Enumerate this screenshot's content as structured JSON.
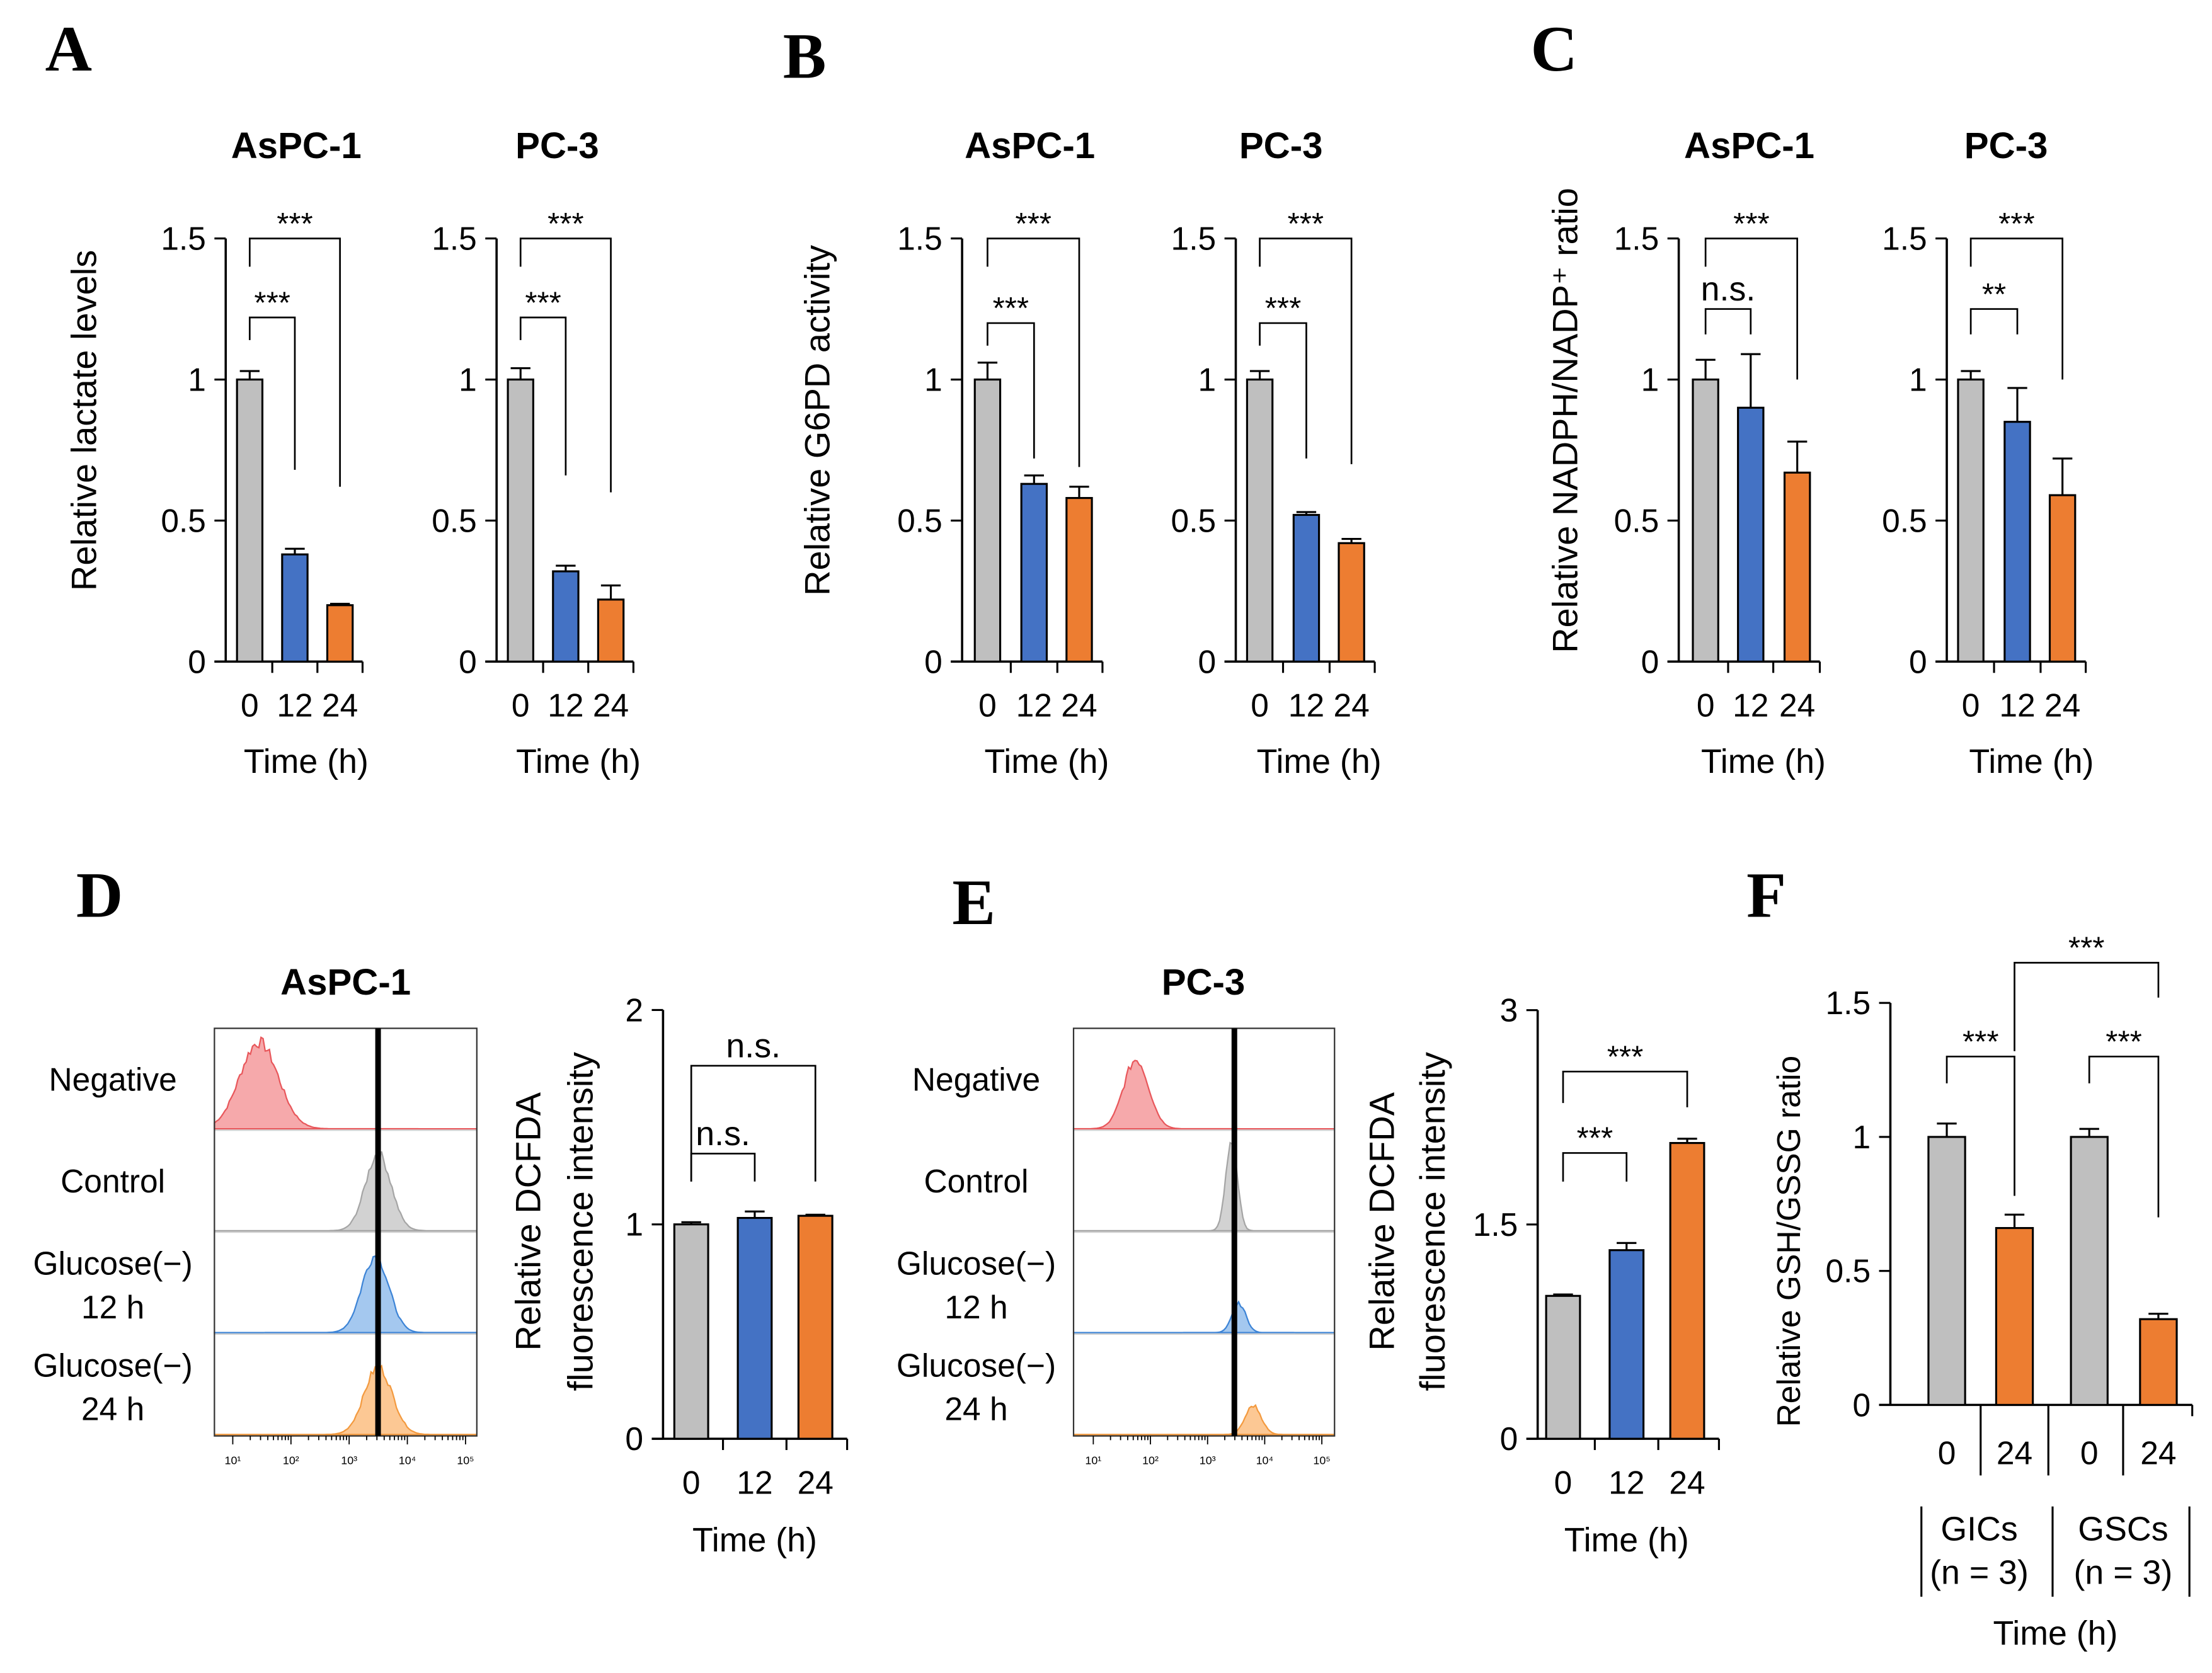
{
  "colors": {
    "t0": "#bfbfbf",
    "t12": "#4472c4",
    "t24": "#ed7d31"
  },
  "panels": {
    "A": {
      "letter": "A",
      "ylabel": "Relative lactate levels",
      "xlabel": "Time (h)"
    },
    "B": {
      "letter": "B",
      "ylabel": "Relative G6PD activity",
      "xlabel": "Time (h)"
    },
    "C": {
      "letter": "C",
      "ylabel": "Relative NADPH/NADP⁺ ratio",
      "xlabel": "Time (h)"
    },
    "D": {
      "letter": "D",
      "title": "AsPC-1",
      "ylabel1": "Relative DCFDA",
      "ylabel2": "fluorescence intensity",
      "xlabel": "Time (h)"
    },
    "E": {
      "letter": "E",
      "title": "PC-3",
      "ylabel1": "Relative DCFDA",
      "ylabel2": "fluorescence intensity",
      "xlabel": "Time (h)"
    },
    "F": {
      "letter": "F",
      "ylabel": "Relative GSH/GSSG ratio",
      "xlabel": "Time (h)",
      "groups": [
        {
          "label": "GICs",
          "n": "(n = 3)"
        },
        {
          "label": "GSCs",
          "n": "(n = 3)"
        }
      ]
    }
  },
  "histograms": {
    "row_labels": [
      [
        "Negative"
      ],
      [
        "Control"
      ],
      [
        "Glucose(−)",
        "12 h"
      ],
      [
        "Glucose(−)",
        "24 h"
      ]
    ],
    "x_tick_labels": [
      "10¹",
      "10²",
      "10³",
      "10⁴",
      "10⁵"
    ]
  },
  "chart_data": [
    {
      "type": "bar",
      "panel": "A",
      "title": "AsPC-1",
      "ylabel": "Relative lactate levels",
      "xlabel": "Time (h)",
      "categories": [
        "0",
        "12",
        "24"
      ],
      "values": [
        1.0,
        0.38,
        0.2
      ],
      "errors": [
        0.03,
        0.02,
        0.005
      ],
      "ylim": [
        0,
        1.5
      ],
      "yticks": [
        "0",
        "0.5",
        "1",
        "1.5"
      ],
      "comparisons": [
        {
          "pair": [
            0,
            1
          ],
          "label": "***"
        },
        {
          "pair": [
            0,
            2
          ],
          "label": "***"
        }
      ]
    },
    {
      "type": "bar",
      "panel": "A",
      "title": "PC-3",
      "ylabel": "Relative lactate levels",
      "xlabel": "Time (h)",
      "categories": [
        "0",
        "12",
        "24"
      ],
      "values": [
        1.0,
        0.32,
        0.22
      ],
      "errors": [
        0.04,
        0.02,
        0.05
      ],
      "ylim": [
        0,
        1.5
      ],
      "yticks": [
        "0",
        "0.5",
        "1",
        "1.5"
      ],
      "comparisons": [
        {
          "pair": [
            0,
            1
          ],
          "label": "***"
        },
        {
          "pair": [
            0,
            2
          ],
          "label": "***"
        }
      ]
    },
    {
      "type": "bar",
      "panel": "B",
      "title": "AsPC-1",
      "ylabel": "Relative G6PD activity",
      "xlabel": "Time (h)",
      "categories": [
        "0",
        "12",
        "24"
      ],
      "values": [
        1.0,
        0.63,
        0.58
      ],
      "errors": [
        0.06,
        0.03,
        0.04
      ],
      "ylim": [
        0,
        1.5
      ],
      "yticks": [
        "0",
        "0.5",
        "1",
        "1.5"
      ],
      "comparisons": [
        {
          "pair": [
            0,
            1
          ],
          "label": "***"
        },
        {
          "pair": [
            0,
            2
          ],
          "label": "***"
        }
      ]
    },
    {
      "type": "bar",
      "panel": "B",
      "title": "PC-3",
      "ylabel": "Relative G6PD activity",
      "xlabel": "Time (h)",
      "categories": [
        "0",
        "12",
        "24"
      ],
      "values": [
        1.0,
        0.52,
        0.42
      ],
      "errors": [
        0.03,
        0.01,
        0.015
      ],
      "ylim": [
        0,
        1.5
      ],
      "yticks": [
        "0",
        "0.5",
        "1",
        "1.5"
      ],
      "comparisons": [
        {
          "pair": [
            0,
            1
          ],
          "label": "***"
        },
        {
          "pair": [
            0,
            2
          ],
          "label": "***"
        }
      ]
    },
    {
      "type": "bar",
      "panel": "C",
      "title": "AsPC-1",
      "ylabel": "Relative NADPH/NADP⁺ ratio",
      "xlabel": "Time (h)",
      "categories": [
        "0",
        "12",
        "24"
      ],
      "values": [
        1.0,
        0.9,
        0.67
      ],
      "errors": [
        0.07,
        0.19,
        0.11
      ],
      "ylim": [
        0,
        1.5
      ],
      "yticks": [
        "0",
        "0.5",
        "1",
        "1.5"
      ],
      "comparisons": [
        {
          "pair": [
            0,
            1
          ],
          "label": "n.s."
        },
        {
          "pair": [
            0,
            2
          ],
          "label": "***"
        }
      ]
    },
    {
      "type": "bar",
      "panel": "C",
      "title": "PC-3",
      "ylabel": "Relative NADPH/NADP⁺ ratio",
      "xlabel": "Time (h)",
      "categories": [
        "0",
        "12",
        "24"
      ],
      "values": [
        1.0,
        0.85,
        0.59
      ],
      "errors": [
        0.03,
        0.12,
        0.13
      ],
      "ylim": [
        0,
        1.5
      ],
      "yticks": [
        "0",
        "0.5",
        "1",
        "1.5"
      ],
      "comparisons": [
        {
          "pair": [
            0,
            1
          ],
          "label": "**"
        },
        {
          "pair": [
            0,
            2
          ],
          "label": "***"
        }
      ]
    },
    {
      "type": "bar",
      "panel": "D",
      "title": "AsPC-1",
      "ylabel": "Relative DCFDA fluorescence intensity",
      "xlabel": "Time (h)",
      "categories": [
        "0",
        "12",
        "24"
      ],
      "values": [
        1.0,
        1.03,
        1.04
      ],
      "errors": [
        0.01,
        0.03,
        0.005
      ],
      "ylim": [
        0,
        2
      ],
      "yticks": [
        "0",
        "1",
        "2"
      ],
      "comparisons": [
        {
          "pair": [
            0,
            1
          ],
          "label": "n.s."
        },
        {
          "pair": [
            0,
            2
          ],
          "label": "n.s."
        }
      ]
    },
    {
      "type": "bar",
      "panel": "E",
      "title": "PC-3",
      "ylabel": "Relative DCFDA fluorescence intensity",
      "xlabel": "Time (h)",
      "categories": [
        "0",
        "12",
        "24"
      ],
      "values": [
        1.0,
        1.32,
        2.07
      ],
      "errors": [
        0.01,
        0.05,
        0.03
      ],
      "ylim": [
        0,
        3
      ],
      "yticks": [
        "0",
        "1.5",
        "3"
      ],
      "comparisons": [
        {
          "pair": [
            0,
            1
          ],
          "label": "***"
        },
        {
          "pair": [
            0,
            2
          ],
          "label": "***"
        }
      ]
    },
    {
      "type": "bar",
      "panel": "F",
      "title": "",
      "ylabel": "Relative GSH/GSSG ratio",
      "xlabel": "Time (h)",
      "categories": [
        "0",
        "24",
        "0",
        "24"
      ],
      "series_groups": [
        "GICs",
        "GICs",
        "GSCs",
        "GSCs"
      ],
      "values": [
        1.0,
        0.66,
        1.0,
        0.32
      ],
      "errors": [
        0.05,
        0.05,
        0.03,
        0.02
      ],
      "ylim": [
        0,
        1.5
      ],
      "yticks": [
        "0",
        "0.5",
        "1",
        "1.5"
      ],
      "comparisons": [
        {
          "pair": [
            0,
            1
          ],
          "label": "***"
        },
        {
          "pair": [
            2,
            3
          ],
          "label": "***"
        },
        {
          "pair": [
            1,
            3
          ],
          "label": "***"
        }
      ]
    }
  ]
}
